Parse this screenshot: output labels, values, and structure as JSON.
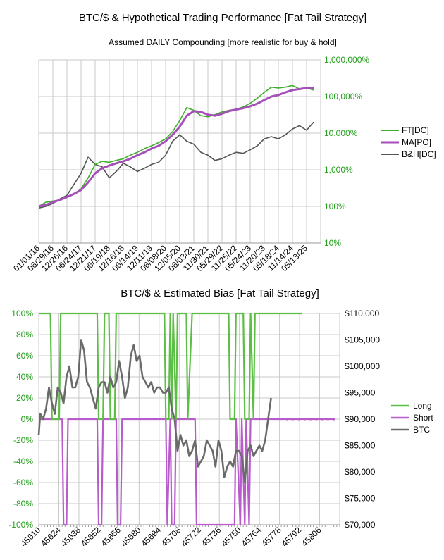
{
  "chart_data": [
    {
      "type": "line",
      "title": "BTC/$ & Hypothetical Trading Performance [Fat Tail Strategy]",
      "subtitle": "Assumed DAILY Compounding [more realistic for buy & hold]",
      "y_scale": "log",
      "ylim": [
        0.1,
        10000
      ],
      "y_ticks": [
        {
          "value": 10000,
          "label": "1,000,000%"
        },
        {
          "value": 1000,
          "label": "100,000%"
        },
        {
          "value": 100,
          "label": "10,000%"
        },
        {
          "value": 10,
          "label": "1,000%"
        },
        {
          "value": 1,
          "label": "100%"
        },
        {
          "value": 0.1,
          "label": "10%"
        }
      ],
      "x_tick_labels": [
        "01/01/16",
        "06/29/16",
        "12/26/16",
        "06/24/17",
        "12/21/17",
        "06/19/18",
        "12/16/18",
        "06/14/19",
        "12/11/19",
        "06/08/20",
        "12/05/20",
        "06/03/21",
        "11/30/21",
        "05/29/22",
        "11/25/22",
        "05/24/23",
        "11/20/23",
        "05/18/24",
        "11/14/24",
        "05/13/25"
      ],
      "x": [
        0,
        0.5,
        1,
        1.5,
        2,
        2.5,
        3,
        3.5,
        4,
        4.5,
        5,
        5.5,
        6,
        6.5,
        7,
        7.5,
        8,
        8.5,
        9,
        9.5,
        10,
        10.5,
        11,
        11.5,
        12,
        12.5,
        13,
        13.5,
        14,
        14.5,
        15,
        15.5,
        16,
        16.5,
        17,
        17.5,
        18,
        18.5,
        19,
        19.5
      ],
      "series": [
        {
          "name": "FT[DC]",
          "color": "#3fae2a",
          "values": [
            1,
            1.3,
            1.4,
            1.5,
            1.8,
            2.2,
            3,
            6,
            14,
            17,
            16,
            18,
            20,
            25,
            30,
            38,
            45,
            55,
            70,
            110,
            220,
            500,
            420,
            300,
            280,
            320,
            380,
            420,
            450,
            520,
            650,
            900,
            1300,
            1800,
            1700,
            1800,
            2000,
            1600,
            1700,
            1500
          ]
        },
        {
          "name": "MA[PO]",
          "color": "#a54fb8",
          "values": [
            1,
            1.1,
            1.3,
            1.5,
            1.8,
            2.2,
            2.8,
            4.5,
            8,
            11,
            13,
            15,
            17,
            20,
            25,
            30,
            38,
            45,
            60,
            90,
            150,
            300,
            400,
            380,
            320,
            300,
            340,
            400,
            440,
            480,
            540,
            640,
            800,
            1000,
            1100,
            1300,
            1500,
            1600,
            1700,
            1750
          ]
        },
        {
          "name": "B&H[DC]",
          "color": "#555555",
          "values": [
            0.9,
            1,
            1.2,
            1.6,
            2,
            4,
            8,
            22,
            14,
            12,
            6,
            9,
            15,
            12,
            9,
            11,
            14,
            16,
            25,
            60,
            90,
            60,
            50,
            30,
            25,
            18,
            20,
            25,
            30,
            28,
            35,
            45,
            70,
            80,
            70,
            90,
            130,
            160,
            120,
            200
          ]
        }
      ],
      "legend": "right"
    },
    {
      "type": "line",
      "title": "BTC/$ & Estimated Bias [Fat Tail Strategy]",
      "y_left": {
        "ylim": [
          -100,
          100
        ],
        "tick_labels": [
          "100%",
          "80%",
          "60%",
          "40%",
          "20%",
          "0%",
          "-20%",
          "-40%",
          "-60%",
          "-80%",
          "-100%"
        ]
      },
      "y_right": {
        "ylim": [
          70000,
          110000
        ],
        "tick_labels": [
          "$110,000",
          "$105,000",
          "$100,000",
          "$95,000",
          "$90,000",
          "$85,000",
          "$80,000",
          "$75,000",
          "$70,000"
        ]
      },
      "x_tick_labels": [
        "45610",
        "45624",
        "45638",
        "45652",
        "45666",
        "45680",
        "45694",
        "45708",
        "45722",
        "45736",
        "45750",
        "45764",
        "45778",
        "45792",
        "45806"
      ],
      "xlim": [
        45610,
        45816
      ],
      "series": [
        {
          "name": "Long",
          "color": "#5cbf45",
          "axis": "left",
          "x": [
            45610,
            45618,
            45619,
            45624,
            45625,
            45650,
            45651,
            45654,
            45655,
            45658,
            45659,
            45662,
            45663,
            45665,
            45666,
            45696,
            45697,
            45699,
            45700,
            45701,
            45702,
            45704,
            45705,
            45711,
            45712,
            45715,
            45716,
            45740,
            45741,
            45744,
            45745,
            45750,
            45751,
            45754,
            45755,
            45757,
            45758,
            45790
          ],
          "values": [
            100,
            100,
            0,
            0,
            100,
            100,
            0,
            0,
            100,
            100,
            0,
            0,
            100,
            100,
            100,
            100,
            0,
            0,
            100,
            0,
            100,
            0,
            100,
            100,
            0,
            100,
            100,
            100,
            0,
            0,
            100,
            100,
            0,
            0,
            100,
            0,
            100,
            100
          ]
        },
        {
          "name": "Short",
          "color": "#b85ccc",
          "axis": "left",
          "x": [
            45610,
            45626,
            45627,
            45629,
            45630,
            45650,
            45651,
            45653,
            45654,
            45663,
            45664,
            45666,
            45667,
            45697,
            45698,
            45700,
            45701,
            45703,
            45704,
            45717,
            45718,
            45744,
            45745,
            45748,
            45749,
            45751,
            45752,
            45754,
            45755,
            45812
          ],
          "values": [
            0,
            0,
            -100,
            -100,
            0,
            0,
            -100,
            -100,
            0,
            0,
            -100,
            -100,
            0,
            0,
            -100,
            0,
            -100,
            -100,
            0,
            0,
            -100,
            -100,
            0,
            -100,
            0,
            -100,
            0,
            -100,
            0,
            0
          ]
        },
        {
          "name": "BTC",
          "color": "#6a6a6a",
          "axis": "right",
          "x": [
            45610,
            45611,
            45613,
            45615,
            45617,
            45619,
            45621,
            45623,
            45625,
            45627,
            45629,
            45631,
            45633,
            45635,
            45637,
            45639,
            45641,
            45643,
            45645,
            45647,
            45649,
            45651,
            45653,
            45655,
            45657,
            45659,
            45661,
            45663,
            45665,
            45667,
            45669,
            45671,
            45673,
            45675,
            45677,
            45679,
            45681,
            45683,
            45685,
            45687,
            45689,
            45691,
            45693,
            45695,
            45697,
            45699,
            45701,
            45703,
            45705,
            45707,
            45709,
            45711,
            45713,
            45715,
            45717,
            45719,
            45721,
            45723,
            45725,
            45727,
            45729,
            45731,
            45733,
            45735,
            45737,
            45739,
            45741,
            45743,
            45745,
            45747,
            45749,
            45751,
            45753,
            45755,
            45757,
            45759,
            45761,
            45763,
            45765,
            45767,
            45769
          ],
          "values": [
            87000,
            91000,
            90000,
            92000,
            96000,
            93000,
            91000,
            96000,
            95000,
            93000,
            98000,
            100000,
            96000,
            96000,
            98000,
            105000,
            103000,
            97000,
            96000,
            94000,
            92000,
            96000,
            97000,
            97000,
            95000,
            98000,
            96000,
            97000,
            101000,
            98000,
            94000,
            96000,
            102000,
            104000,
            101000,
            102000,
            98000,
            97000,
            96000,
            97000,
            95000,
            96000,
            96000,
            95000,
            95000,
            96000,
            92000,
            90000,
            84000,
            87000,
            85000,
            86000,
            83000,
            84000,
            86000,
            81000,
            82000,
            83000,
            86000,
            85000,
            84000,
            81000,
            86000,
            84000,
            79000,
            81000,
            82000,
            81000,
            84000,
            84000,
            83000,
            78000,
            84000,
            85000,
            83000,
            84000,
            85000,
            84000,
            86000,
            90000,
            94000
          ]
        }
      ],
      "legend": "right"
    }
  ]
}
